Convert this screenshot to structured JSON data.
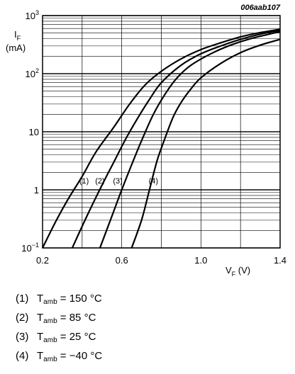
{
  "figure_id": "006aab107",
  "chart_data": {
    "type": "line",
    "ylabel": {
      "main": "I",
      "sub": "F",
      "unit": "(mA)"
    },
    "xlabel": {
      "main": "V",
      "sub": "F",
      "unit": "(V)"
    },
    "xlim": [
      0.2,
      1.4
    ],
    "ylim": [
      0.1,
      1000
    ],
    "yscale": "log",
    "grid": true,
    "x_ticks": [
      {
        "value": 0.2,
        "label": "0.2"
      },
      {
        "value": 0.6,
        "label": "0.6"
      },
      {
        "value": 1.0,
        "label": "1.0"
      },
      {
        "value": 1.4,
        "label": "1.4"
      }
    ],
    "y_ticks": [
      {
        "value": 0.1,
        "base": "10",
        "exp": "−1"
      },
      {
        "value": 1,
        "label": "1"
      },
      {
        "value": 10,
        "label": "10"
      },
      {
        "value": 100,
        "base": "10",
        "exp": "2"
      },
      {
        "value": 1000,
        "base": "10",
        "exp": "3"
      }
    ],
    "series": [
      {
        "name": "(1)",
        "label_pos": {
          "x": 0.41,
          "y": 1.45
        },
        "x": [
          0.2,
          0.27,
          0.33,
          0.4,
          0.47,
          0.56,
          0.64,
          0.72,
          0.8,
          0.9,
          1.0,
          1.1,
          1.2,
          1.3,
          1.4
        ],
        "y": [
          0.1,
          0.3,
          0.7,
          1.7,
          4.5,
          12,
          30,
          65,
          110,
          180,
          260,
          340,
          430,
          510,
          580
        ]
      },
      {
        "name": "(2)",
        "label_pos": {
          "x": 0.49,
          "y": 1.45
        },
        "x": [
          0.35,
          0.42,
          0.5,
          0.56,
          0.62,
          0.68,
          0.74,
          0.8,
          0.9,
          1.0,
          1.1,
          1.2,
          1.3,
          1.4
        ],
        "y": [
          0.1,
          0.33,
          1.2,
          3.0,
          7.5,
          17,
          36,
          70,
          140,
          220,
          300,
          390,
          480,
          560
        ]
      },
      {
        "name": "(3)",
        "label_pos": {
          "x": 0.58,
          "y": 1.45
        },
        "x": [
          0.49,
          0.55,
          0.6,
          0.65,
          0.7,
          0.76,
          0.82,
          0.88,
          0.95,
          1.05,
          1.15,
          1.25,
          1.4
        ],
        "y": [
          0.1,
          0.35,
          1.0,
          2.7,
          7.0,
          20,
          45,
          85,
          140,
          220,
          310,
          400,
          530
        ]
      },
      {
        "name": "(4)",
        "label_pos": {
          "x": 0.76,
          "y": 1.45
        },
        "x": [
          0.65,
          0.7,
          0.74,
          0.78,
          0.82,
          0.86,
          0.9,
          0.95,
          1.0,
          1.1,
          1.2,
          1.3,
          1.4
        ],
        "y": [
          0.1,
          0.3,
          1.0,
          3.3,
          8.0,
          18,
          32,
          55,
          85,
          150,
          230,
          310,
          390
        ]
      }
    ]
  },
  "legend": [
    {
      "num": "(1)",
      "t": "T",
      "sub": "amb",
      "text": " = 150 °C"
    },
    {
      "num": "(2)",
      "t": "T",
      "sub": "amb",
      "text": " = 85 °C"
    },
    {
      "num": "(3)",
      "t": "T",
      "sub": "amb",
      "text": " = 25 °C"
    },
    {
      "num": "(4)",
      "t": "T",
      "sub": "amb",
      "text": " = −40 °C"
    }
  ]
}
